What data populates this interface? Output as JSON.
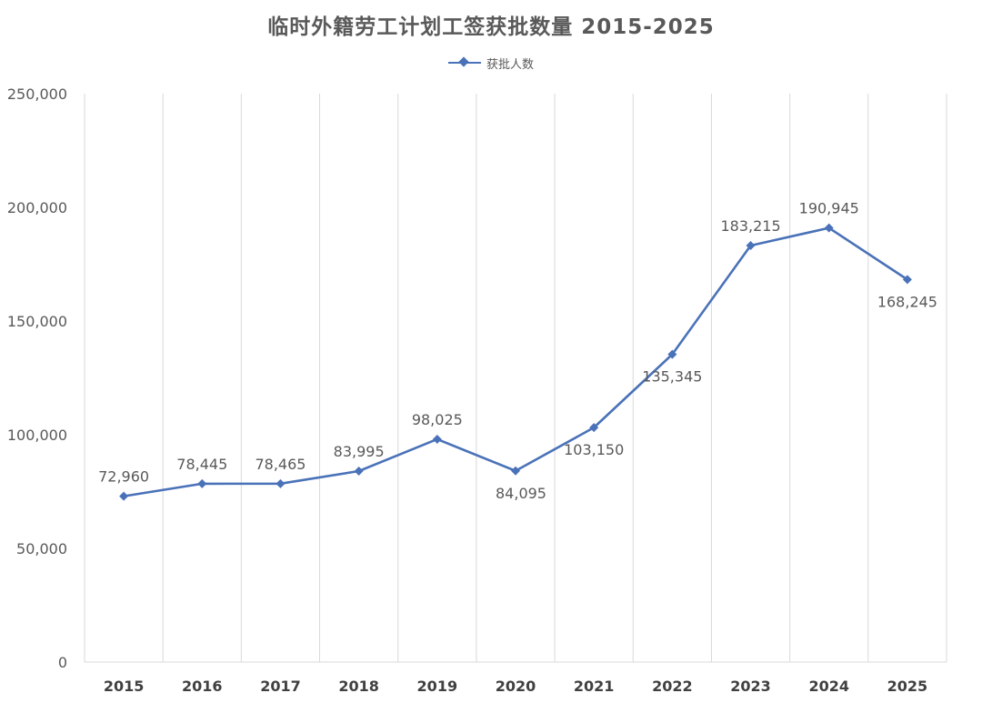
{
  "chart_data": {
    "type": "line",
    "title": "临时外籍劳工计划工签获批数量 2015-2025",
    "xlabel": "",
    "ylabel": "",
    "categories": [
      "2015",
      "2016",
      "2017",
      "2018",
      "2019",
      "2020",
      "2021",
      "2022",
      "2023",
      "2024",
      "2025"
    ],
    "series": [
      {
        "name": "获批人数",
        "values": [
          72960,
          78445,
          78465,
          83995,
          98025,
          84095,
          103150,
          135345,
          183215,
          190945,
          168245
        ],
        "labels": [
          "72,960",
          "78,445",
          "78,465",
          "83,995",
          "98,025",
          "84,095",
          "103,150",
          "135,345",
          "183,215",
          "190,945",
          "168,245"
        ],
        "label_positions": [
          "above",
          "above",
          "above",
          "above",
          "above",
          "below",
          "below",
          "below",
          "above",
          "above",
          "below"
        ]
      }
    ],
    "ylim": [
      0,
      250000
    ],
    "yticks": [
      0,
      50000,
      100000,
      150000,
      200000,
      250000
    ],
    "ytick_labels": [
      "0",
      "50,000",
      "100,000",
      "150,000",
      "200,000",
      "250,000"
    ],
    "grid": "vertical",
    "legend": "top-center",
    "colors": {
      "series": "#4a72b8",
      "grid": "#d9d9d9",
      "text": "#595959"
    }
  }
}
